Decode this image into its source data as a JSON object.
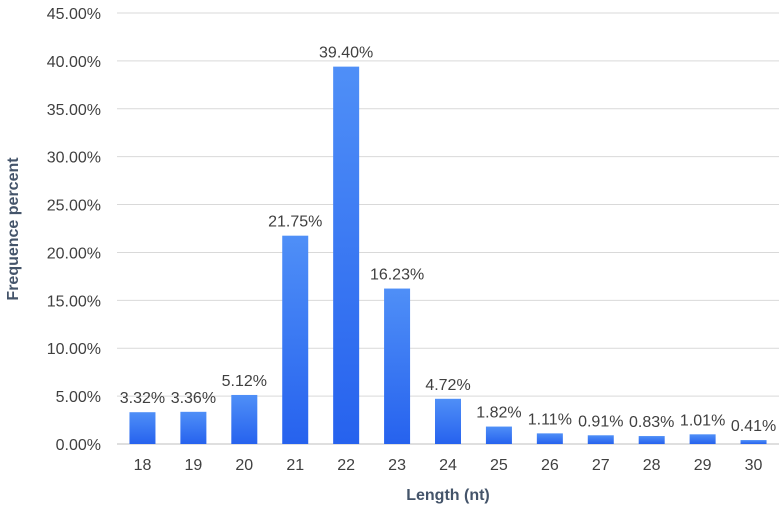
{
  "chart_data": {
    "type": "bar",
    "title": "",
    "xlabel": "Length (nt)",
    "ylabel": "Frequence percent",
    "categories": [
      "18",
      "19",
      "20",
      "21",
      "22",
      "23",
      "24",
      "25",
      "26",
      "27",
      "28",
      "29",
      "30"
    ],
    "values": [
      3.32,
      3.36,
      5.12,
      21.75,
      39.4,
      16.23,
      4.72,
      1.82,
      1.11,
      0.91,
      0.83,
      1.01,
      0.41
    ],
    "data_labels": [
      "3.32%",
      "3.36%",
      "5.12%",
      "21.75%",
      "39.40%",
      "16.23%",
      "4.72%",
      "1.82%",
      "1.11%",
      "0.91%",
      "0.83%",
      "1.01%",
      "0.41%"
    ],
    "ylim": [
      0,
      45
    ],
    "yticks": [
      0,
      5,
      10,
      15,
      20,
      25,
      30,
      35,
      40,
      45
    ],
    "ytick_labels": [
      "0.00%",
      "5.00%",
      "10.00%",
      "15.00%",
      "20.00%",
      "25.00%",
      "30.00%",
      "35.00%",
      "40.00%",
      "45.00%"
    ],
    "grid": true,
    "legend": "none",
    "colors": {
      "bar_top": "#4f8ff7",
      "bar_bottom": "#2662ee",
      "grid": "#d9d9d9"
    }
  }
}
